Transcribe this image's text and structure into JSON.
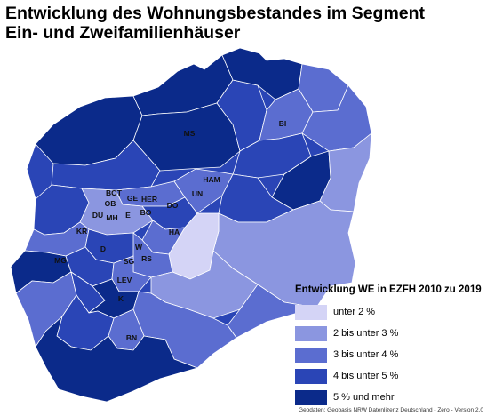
{
  "title": {
    "line1": "Entwicklung des Wohnungsbestandes im Segment",
    "line2": "Ein- und Zweifamilienhäuser"
  },
  "legend": {
    "title": "Entwicklung WE in EZFH 2010 zu 2019",
    "classes": [
      {
        "label": "unter 2 %",
        "color": "#d4d4f6"
      },
      {
        "label": "2 bis unter 3 %",
        "color": "#8b96e0"
      },
      {
        "label": "3 bis unter 4 %",
        "color": "#5b6dd0"
      },
      {
        "label": "4 bis unter 5 %",
        "color": "#2a45b6"
      },
      {
        "label": "5 % und mehr",
        "color": "#0b2a8a"
      }
    ]
  },
  "cities": [
    "MS",
    "BI",
    "HAM",
    "UN",
    "BOT",
    "GE",
    "HER",
    "OB",
    "DO",
    "DU",
    "MH",
    "E",
    "BO",
    "KR",
    "HA",
    "D",
    "W",
    "SG",
    "RS",
    "MG",
    "LEV",
    "K",
    "BN"
  ],
  "source": "Geodaten: Geobasis NRW Datenlizenz Deutschland - Zero - Version 2.0"
}
